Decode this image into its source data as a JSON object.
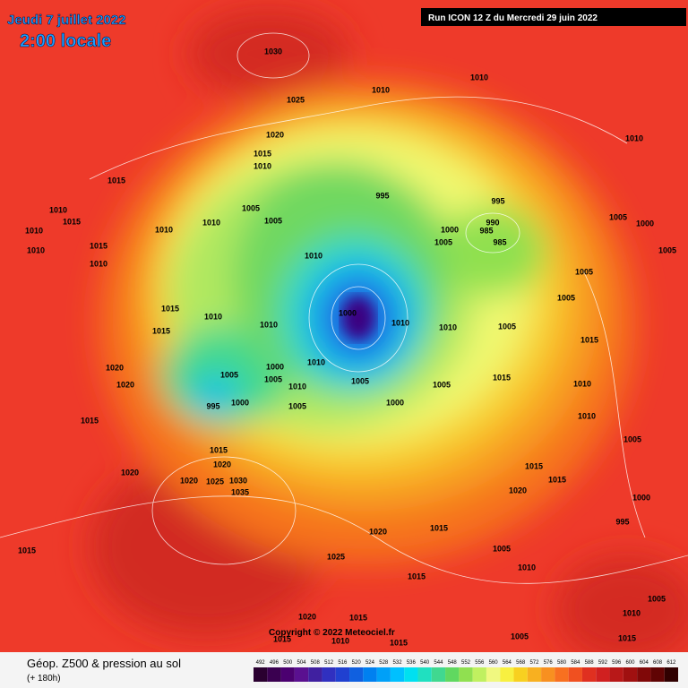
{
  "header": {
    "date": "Jeudi 7 juillet 2022",
    "time": "2:00 locale",
    "run": "Run ICON 12 Z du Mercredi 29 juin 2022"
  },
  "footer": {
    "copyright": "Copyright © 2022 Meteociel.fr",
    "title": "Géop. Z500 & pression au sol",
    "subtitle": "(+ 180h)"
  },
  "legend": {
    "scale": [
      492,
      496,
      500,
      504,
      508,
      512,
      516,
      520,
      524,
      528,
      532,
      536,
      540,
      544,
      548,
      552,
      556,
      560,
      564,
      568,
      572,
      576,
      580,
      584,
      588,
      592,
      596,
      600,
      604,
      608,
      612
    ],
    "colors": [
      "#2a0030",
      "#3a0050",
      "#4b0070",
      "#5a1090",
      "#4020a0",
      "#3030c0",
      "#2040d0",
      "#1060e0",
      "#0080f0",
      "#00a0f8",
      "#00c0ff",
      "#00e0f0",
      "#20e0c0",
      "#40d890",
      "#60d860",
      "#90e050",
      "#c0f060",
      "#f0f880",
      "#f8f040",
      "#f8d020",
      "#f8b020",
      "#f89020",
      "#f87020",
      "#f05020",
      "#e03020",
      "#d02020",
      "#b81818",
      "#a01010",
      "#800808",
      "#600404",
      "#300000"
    ]
  },
  "map": {
    "isobar_labels": [
      "1030",
      "1025",
      "1010",
      "1010",
      "1020",
      "1015",
      "1010",
      "1010",
      "995",
      "1005",
      "1005",
      "1010",
      "1010",
      "1010",
      "995",
      "990",
      "985",
      "985",
      "1000",
      "1005",
      "1000",
      "1010",
      "1010",
      "1005",
      "1010",
      "1010",
      "1005",
      "1000",
      "1005",
      "1010",
      "1005",
      "1010",
      "1005",
      "1000",
      "995",
      "1000",
      "1005",
      "1015",
      "1015",
      "1020",
      "1020",
      "1020",
      "1025",
      "1030",
      "1035",
      "1015",
      "1015",
      "1020",
      "1005",
      "1000",
      "995",
      "1020",
      "1015",
      "1015",
      "1025",
      "1015",
      "1010",
      "1005",
      "1020",
      "1015",
      "1015",
      "1010",
      "1015",
      "1005",
      "1010",
      "1005",
      "1015",
      "1015",
      "1010",
      "1015",
      "1010",
      "1010",
      "1015",
      "1010",
      "1015",
      "1015",
      "1020",
      "1020",
      "1015",
      "1005",
      "1005",
      "1015",
      "1010",
      "1010",
      "1005",
      "1000",
      "1005"
    ]
  }
}
